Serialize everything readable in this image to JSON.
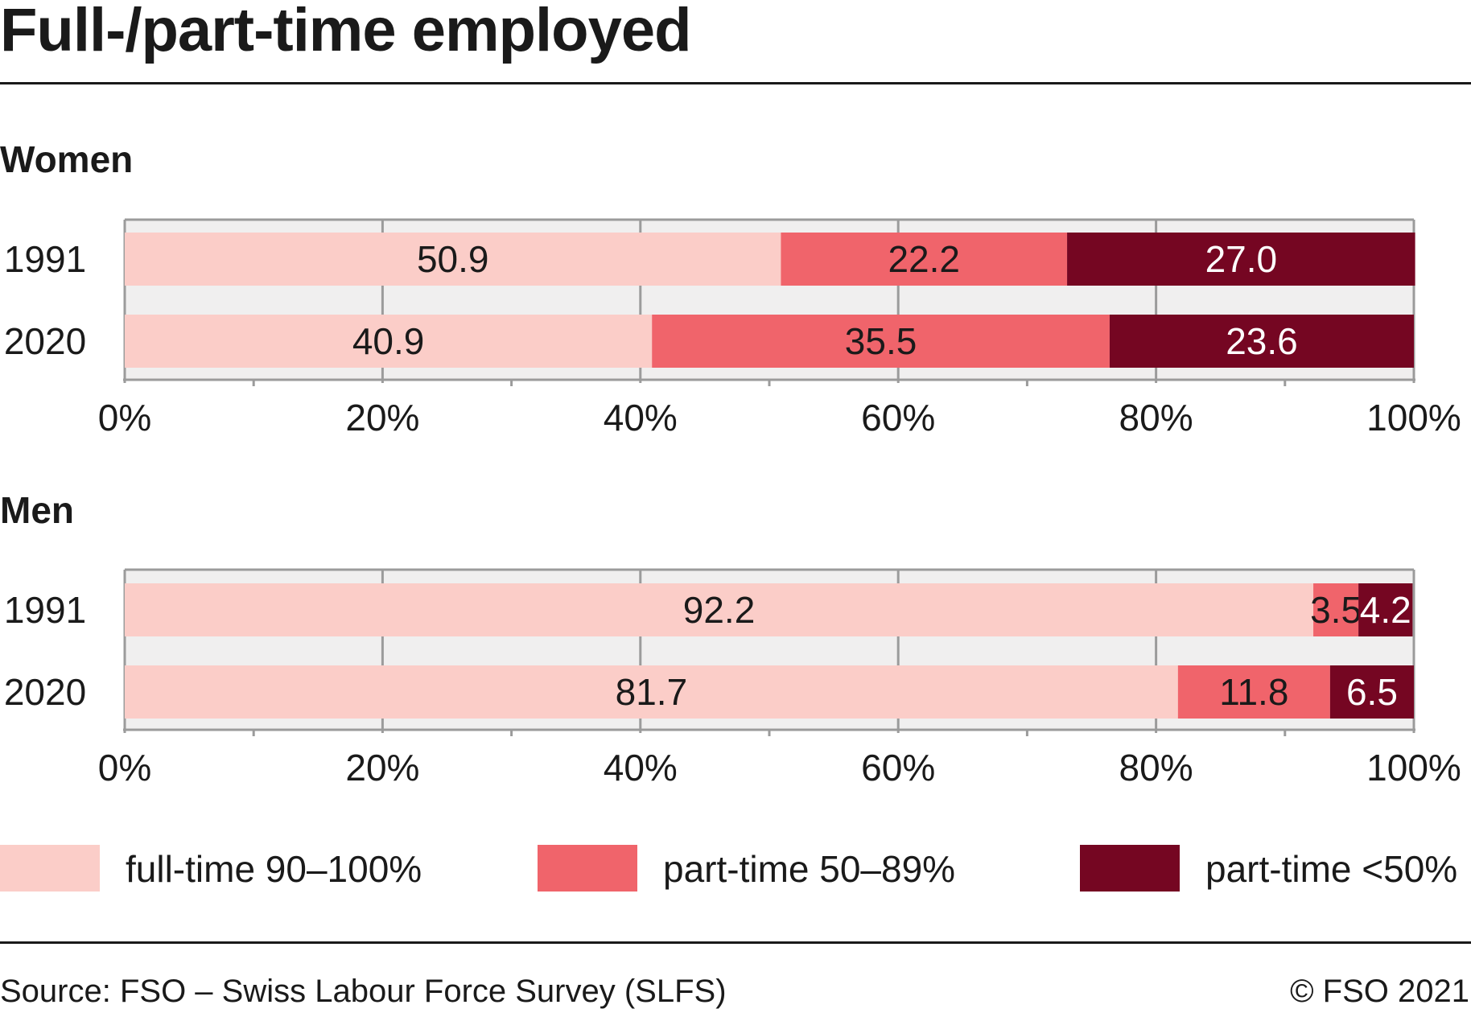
{
  "title": "Full-/part-time employed",
  "source": "Source: FSO – Swiss Labour Force Survey (SLFS)",
  "copyright": "© FSO 2021",
  "chart_data": [
    {
      "type": "bar",
      "stacked": true,
      "orientation": "horizontal",
      "title": "Women",
      "categories": [
        "1991",
        "2020"
      ],
      "series": [
        {
          "name": "full-time 90–100%",
          "values": [
            50.9,
            40.9
          ]
        },
        {
          "name": "part-time 50–89%",
          "values": [
            22.2,
            35.5
          ]
        },
        {
          "name": "part-time <50%",
          "values": [
            27.0,
            23.6
          ]
        }
      ],
      "value_labels": [
        [
          "50.9",
          "40.9"
        ],
        [
          "22.2",
          "35.5"
        ],
        [
          "27.0",
          "23.6"
        ]
      ],
      "xlim": [
        0,
        100
      ],
      "xticks": [
        "0%",
        "20%",
        "40%",
        "60%",
        "80%",
        "100%"
      ],
      "grid": true
    },
    {
      "type": "bar",
      "stacked": true,
      "orientation": "horizontal",
      "title": "Men",
      "categories": [
        "1991",
        "2020"
      ],
      "series": [
        {
          "name": "full-time 90–100%",
          "values": [
            92.2,
            81.7
          ]
        },
        {
          "name": "part-time 50–89%",
          "values": [
            3.5,
            11.8
          ]
        },
        {
          "name": "part-time <50%",
          "values": [
            4.2,
            6.5
          ]
        }
      ],
      "value_labels": [
        [
          "92.2",
          "81.7"
        ],
        [
          "3.5",
          "11.8"
        ],
        [
          "4.2",
          "6.5"
        ]
      ],
      "xlim": [
        0,
        100
      ],
      "xticks": [
        "0%",
        "20%",
        "40%",
        "60%",
        "80%",
        "100%"
      ],
      "grid": true
    }
  ],
  "legend": {
    "placement": "bottom",
    "items": [
      {
        "label": "full-time 90–100%",
        "color": "#fbcdc8"
      },
      {
        "label": "part-time 50–89%",
        "color": "#f0646b"
      },
      {
        "label": "part-time <50%",
        "color": "#750622"
      }
    ]
  },
  "colors": {
    "series": [
      "#fbcdc8",
      "#f0646b",
      "#750622"
    ],
    "label_dark": "#1a1a1a",
    "label_light": "#ffffff",
    "plot_background": "#f0efef",
    "grid": "#9b9b9b"
  }
}
